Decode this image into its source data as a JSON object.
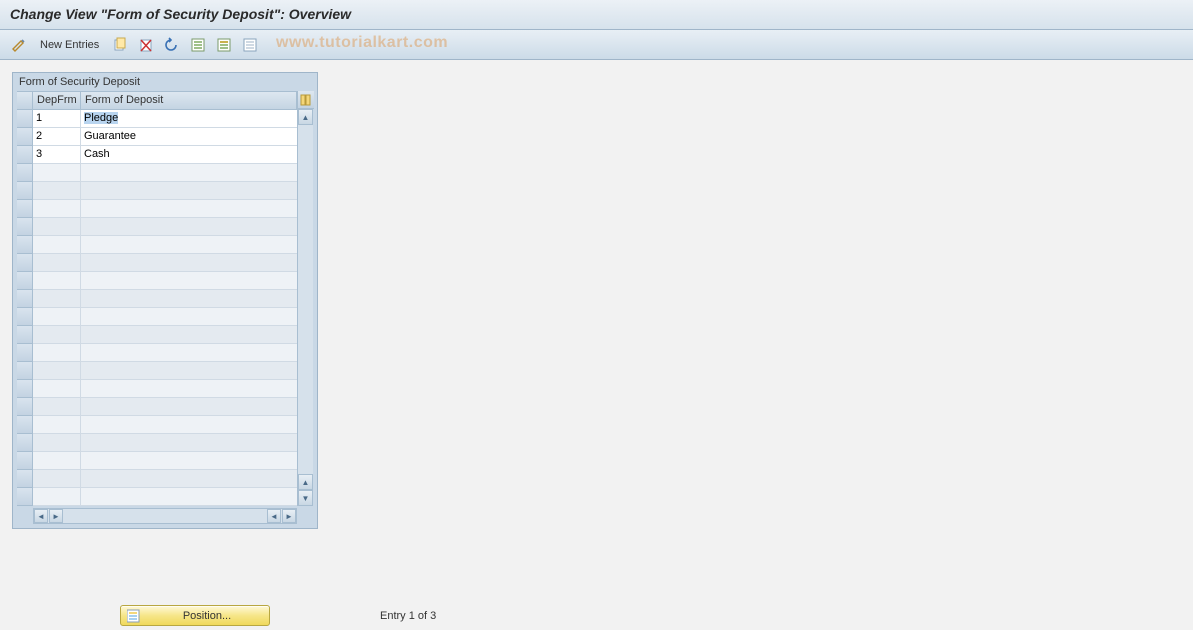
{
  "title": "Change View \"Form of Security Deposit\": Overview",
  "toolbar": {
    "new_entries": "New Entries"
  },
  "watermark": "www.tutorialkart.com",
  "panel": {
    "title": "Form of Security Deposit",
    "columns": {
      "depfrm": "DepFrm",
      "form": "Form of Deposit"
    },
    "rows": [
      {
        "id": "1",
        "form": "Pledge",
        "selected": true
      },
      {
        "id": "2",
        "form": "Guarantee",
        "selected": false
      },
      {
        "id": "3",
        "form": "Cash",
        "selected": false
      }
    ],
    "empty_row_count": 19
  },
  "footer": {
    "position_label": "Position...",
    "entry_text": "Entry 1 of 3"
  },
  "colors": {
    "title_bg_top": "#ecf1f6",
    "title_bg_bottom": "#d6e2ec",
    "toolbar_bg_top": "#e8eff5",
    "toolbar_bg_bottom": "#ccdbe8",
    "panel_bg": "#c9d8e6",
    "border": "#9fb5c9",
    "grid_border": "#a8bed1",
    "cell_bg": "#ffffff",
    "empty_cell_bg": "#eef2f6",
    "empty_cell_alt_bg": "#e4eaf0",
    "selection_bg": "#b8d4ef",
    "content_bg": "#f2f2f2",
    "position_btn_top": "#fff9d8",
    "position_btn_mid": "#f6e68a",
    "position_btn_bottom": "#f0d95c",
    "watermark_color": "rgba(220,160,100,0.55)"
  }
}
